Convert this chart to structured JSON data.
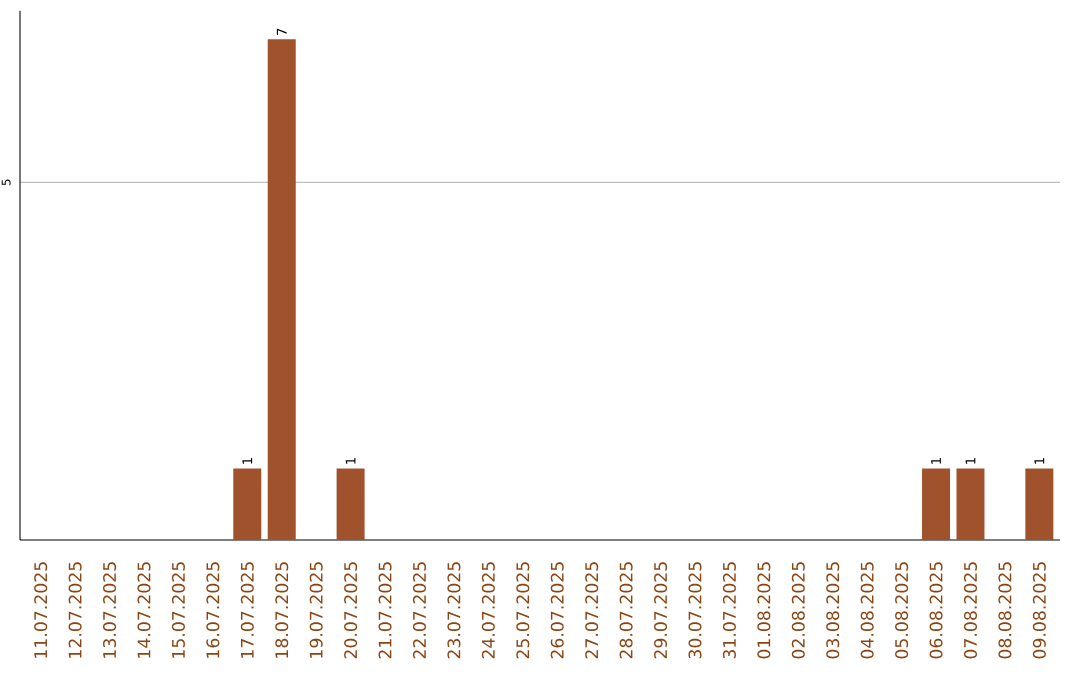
{
  "chart_data": {
    "type": "bar",
    "categories": [
      "11.07.2025",
      "12.07.2025",
      "13.07.2025",
      "14.07.2025",
      "15.07.2025",
      "16.07.2025",
      "17.07.2025",
      "18.07.2025",
      "19.07.2025",
      "20.07.2025",
      "21.07.2025",
      "22.07.2025",
      "23.07.2025",
      "24.07.2025",
      "25.07.2025",
      "26.07.2025",
      "27.07.2025",
      "28.07.2025",
      "29.07.2025",
      "30.07.2025",
      "31.07.2025",
      "01.08.2025",
      "02.08.2025",
      "03.08.2025",
      "04.08.2025",
      "05.08.2025",
      "06.08.2025",
      "07.08.2025",
      "08.08.2025",
      "09.08.2025"
    ],
    "values": [
      0,
      0,
      0,
      0,
      0,
      0,
      1,
      7,
      0,
      1,
      0,
      0,
      0,
      0,
      0,
      0,
      0,
      0,
      0,
      0,
      0,
      0,
      0,
      0,
      0,
      0,
      1,
      1,
      0,
      1
    ],
    "value_labels": [
      null,
      null,
      null,
      null,
      null,
      null,
      "1",
      "7",
      null,
      "1",
      null,
      null,
      null,
      null,
      null,
      null,
      null,
      null,
      null,
      null,
      null,
      null,
      null,
      null,
      null,
      null,
      "1",
      "1",
      null,
      "1"
    ],
    "color": "#a0522d",
    "ylim": [
      0,
      7.4
    ],
    "yticks": [
      5
    ],
    "grid": "y"
  }
}
